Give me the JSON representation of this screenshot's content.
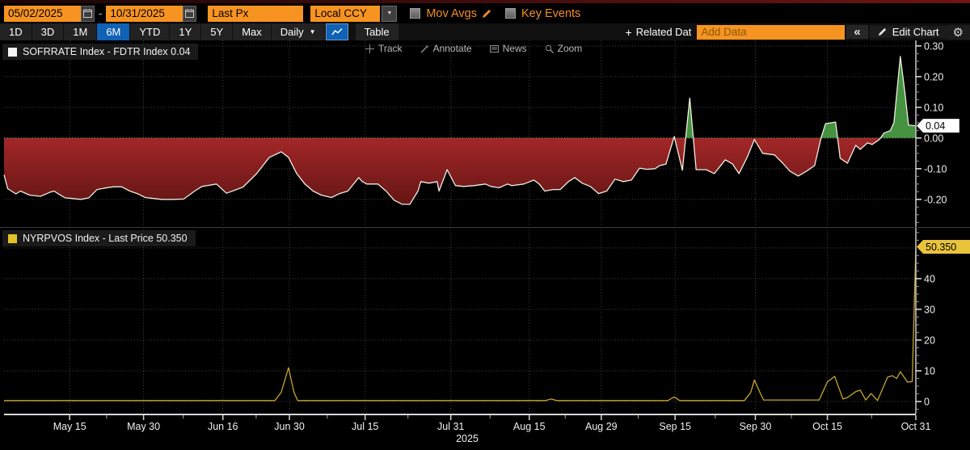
{
  "topbar": {
    "date_from": "05/02/2025",
    "date_to": "10/31/2025",
    "separator": "-",
    "price_field": "Last Px",
    "currency_field": "Local CCY",
    "mov_avgs_label": "Mov Avgs",
    "key_events_label": "Key Events"
  },
  "toolbar": {
    "ranges": [
      "1D",
      "3D",
      "1M",
      "6M",
      "YTD",
      "1Y",
      "5Y",
      "Max"
    ],
    "selected_range": "6M",
    "period_label": "Daily",
    "table_label": "Table",
    "related_data_label": "Related Dat",
    "plus_glyph": "+",
    "add_data_placeholder": "Add Data",
    "collapse_label": "«",
    "edit_chart_label": "Edit Chart"
  },
  "chart_tools": {
    "track": "Track",
    "annotate": "Annotate",
    "news": "News",
    "zoom": "Zoom"
  },
  "colors": {
    "accent_orange": "#f79421",
    "selected_blue": "#1161b5",
    "fill_red_top": "#a32727",
    "fill_red_bottom": "#4f0f0f",
    "fill_green": "#459341",
    "line_white": "#f2ece0",
    "line_yellow": "#c8a52c",
    "tag_white": "#ffffff",
    "tag_yellow": "#e9c43b",
    "grid_grey": "#464646"
  },
  "x_axis": {
    "year_label": "2025",
    "ticks": [
      {
        "label": "May 15",
        "f": 0.072
      },
      {
        "label": "May 30",
        "f": 0.153
      },
      {
        "label": "Jun 16",
        "f": 0.24
      },
      {
        "label": "Jun 30",
        "f": 0.313
      },
      {
        "label": "Jul 15",
        "f": 0.396
      },
      {
        "label": "Jul 31",
        "f": 0.49
      },
      {
        "label": "Aug 15",
        "f": 0.576
      },
      {
        "label": "Aug 29",
        "f": 0.655
      },
      {
        "label": "Sep 15",
        "f": 0.736
      },
      {
        "label": "Sep 30",
        "f": 0.824
      },
      {
        "label": "Oct 15",
        "f": 0.903
      },
      {
        "label": "Oct 31",
        "f": 1.0
      }
    ]
  },
  "chart_data": [
    {
      "type": "line",
      "name": "spread-pane",
      "title": "SOFRRATE Index - FDTR Index",
      "legend_label": "SOFRRATE Index - FDTR Index  0.04",
      "legend_swatch": "#f5f5f5",
      "last_value": 0.04,
      "tag": {
        "label": "0.04",
        "v": 0.04,
        "bg": "#ffffff",
        "fg": "#000000"
      },
      "ylim": [
        -0.29,
        0.318
      ],
      "y_ticks": [
        {
          "v": 0.3,
          "label": "0.30"
        },
        {
          "v": 0.2,
          "label": "0.20"
        },
        {
          "v": 0.1,
          "label": "0.10"
        },
        {
          "v": 0.0,
          "label": "0.00"
        },
        {
          "v": -0.1,
          "label": "-0.10"
        },
        {
          "v": -0.2,
          "label": "-0.20"
        }
      ],
      "grid_values": [
        0.3,
        0.2,
        0.1,
        0.0,
        -0.1,
        -0.2
      ],
      "minor_tick_step": 0.025,
      "line_color": "#f2ece0",
      "fill_baseline": 0,
      "x_unit": "fraction of 2025-05-02 to 2025-10-31",
      "points": [
        [
          0.0,
          -0.12
        ],
        [
          0.004,
          -0.165
        ],
        [
          0.013,
          -0.182
        ],
        [
          0.018,
          -0.173
        ],
        [
          0.028,
          -0.186
        ],
        [
          0.04,
          -0.19
        ],
        [
          0.051,
          -0.176
        ],
        [
          0.055,
          -0.173
        ],
        [
          0.059,
          -0.181
        ],
        [
          0.067,
          -0.195
        ],
        [
          0.075,
          -0.197
        ],
        [
          0.084,
          -0.2
        ],
        [
          0.093,
          -0.195
        ],
        [
          0.102,
          -0.168
        ],
        [
          0.111,
          -0.163
        ],
        [
          0.12,
          -0.159
        ],
        [
          0.129,
          -0.159
        ],
        [
          0.138,
          -0.173
        ],
        [
          0.146,
          -0.181
        ],
        [
          0.155,
          -0.194
        ],
        [
          0.164,
          -0.197
        ],
        [
          0.173,
          -0.2
        ],
        [
          0.185,
          -0.2
        ],
        [
          0.197,
          -0.199
        ],
        [
          0.209,
          -0.173
        ],
        [
          0.217,
          -0.158
        ],
        [
          0.233,
          -0.15
        ],
        [
          0.244,
          -0.18
        ],
        [
          0.262,
          -0.16
        ],
        [
          0.277,
          -0.116
        ],
        [
          0.291,
          -0.063
        ],
        [
          0.304,
          -0.045
        ],
        [
          0.312,
          -0.063
        ],
        [
          0.321,
          -0.116
        ],
        [
          0.33,
          -0.15
        ],
        [
          0.339,
          -0.173
        ],
        [
          0.348,
          -0.186
        ],
        [
          0.359,
          -0.194
        ],
        [
          0.368,
          -0.181
        ],
        [
          0.377,
          -0.173
        ],
        [
          0.389,
          -0.129
        ],
        [
          0.393,
          -0.142
        ],
        [
          0.398,
          -0.15
        ],
        [
          0.41,
          -0.15
        ],
        [
          0.419,
          -0.173
        ],
        [
          0.428,
          -0.203
        ],
        [
          0.437,
          -0.216
        ],
        [
          0.445,
          -0.216
        ],
        [
          0.454,
          -0.173
        ],
        [
          0.457,
          -0.142
        ],
        [
          0.466,
          -0.147
        ],
        [
          0.475,
          -0.142
        ],
        [
          0.477,
          -0.173
        ],
        [
          0.486,
          -0.103
        ],
        [
          0.495,
          -0.155
        ],
        [
          0.504,
          -0.158
        ],
        [
          0.516,
          -0.155
        ],
        [
          0.528,
          -0.15
        ],
        [
          0.534,
          -0.158
        ],
        [
          0.543,
          -0.162
        ],
        [
          0.552,
          -0.15
        ],
        [
          0.557,
          -0.155
        ],
        [
          0.57,
          -0.15
        ],
        [
          0.581,
          -0.137
        ],
        [
          0.587,
          -0.15
        ],
        [
          0.593,
          -0.173
        ],
        [
          0.602,
          -0.168
        ],
        [
          0.61,
          -0.168
        ],
        [
          0.619,
          -0.142
        ],
        [
          0.626,
          -0.129
        ],
        [
          0.634,
          -0.147
        ],
        [
          0.643,
          -0.158
        ],
        [
          0.652,
          -0.181
        ],
        [
          0.661,
          -0.173
        ],
        [
          0.67,
          -0.134
        ],
        [
          0.679,
          -0.142
        ],
        [
          0.688,
          -0.137
        ],
        [
          0.697,
          -0.098
        ],
        [
          0.705,
          -0.102
        ],
        [
          0.714,
          -0.1
        ],
        [
          0.719,
          -0.09
        ],
        [
          0.726,
          -0.085
        ],
        [
          0.735,
          0.005
        ],
        [
          0.744,
          -0.105
        ],
        [
          0.752,
          0.13
        ],
        [
          0.759,
          -0.103
        ],
        [
          0.77,
          -0.103
        ],
        [
          0.779,
          -0.116
        ],
        [
          0.791,
          -0.071
        ],
        [
          0.799,
          -0.085
        ],
        [
          0.806,
          -0.116
        ],
        [
          0.815,
          -0.063
        ],
        [
          0.823,
          -0.005
        ],
        [
          0.832,
          -0.05
        ],
        [
          0.845,
          -0.055
        ],
        [
          0.854,
          -0.082
        ],
        [
          0.862,
          -0.108
        ],
        [
          0.871,
          -0.124
        ],
        [
          0.88,
          -0.108
        ],
        [
          0.889,
          -0.09
        ],
        [
          0.896,
          0.0
        ],
        [
          0.901,
          0.047
        ],
        [
          0.912,
          0.052
        ],
        [
          0.917,
          -0.066
        ],
        [
          0.925,
          -0.082
        ],
        [
          0.934,
          -0.024
        ],
        [
          0.939,
          -0.037
        ],
        [
          0.947,
          -0.016
        ],
        [
          0.952,
          -0.021
        ],
        [
          0.96,
          -0.005
        ],
        [
          0.965,
          0.016
        ],
        [
          0.972,
          0.024
        ],
        [
          0.976,
          0.05
        ],
        [
          0.983,
          0.266
        ],
        [
          0.988,
          0.147
        ],
        [
          0.992,
          0.042
        ],
        [
          1.0,
          0.04
        ]
      ]
    },
    {
      "type": "line",
      "name": "volume-pane",
      "title": "NYRPVOS Index - Last Price",
      "legend_label": "NYRPVOS Index - Last Price  50.350",
      "legend_swatch": "#e3c229",
      "last_value": 50.35,
      "tag": {
        "label": "50.350",
        "v": 50.35,
        "bg": "#e9c43b",
        "fg": "#000000"
      },
      "ylim": [
        -3.95,
        56.8
      ],
      "y_ticks": [
        {
          "v": 40,
          "label": "40"
        },
        {
          "v": 30,
          "label": "30"
        },
        {
          "v": 20,
          "label": "20"
        },
        {
          "v": 10,
          "label": "10"
        },
        {
          "v": 0,
          "label": "0"
        }
      ],
      "grid_values": [
        50,
        40,
        30,
        20,
        10,
        0
      ],
      "minor_tick_step": 2.5,
      "line_color": "#c8a52c",
      "fill_baseline": null,
      "x_unit": "fraction of 2025-05-02 to 2025-10-31",
      "points": [
        [
          0.0,
          0.3
        ],
        [
          0.297,
          0.3
        ],
        [
          0.304,
          3.0
        ],
        [
          0.312,
          11.0
        ],
        [
          0.318,
          3.0
        ],
        [
          0.322,
          0.3
        ],
        [
          0.594,
          0.3
        ],
        [
          0.6,
          0.8
        ],
        [
          0.606,
          0.3
        ],
        [
          0.728,
          0.3
        ],
        [
          0.735,
          1.5
        ],
        [
          0.741,
          0.3
        ],
        [
          0.812,
          0.3
        ],
        [
          0.819,
          3.0
        ],
        [
          0.823,
          7.0
        ],
        [
          0.829,
          3.0
        ],
        [
          0.833,
          0.5
        ],
        [
          0.894,
          0.5
        ],
        [
          0.903,
          6.4
        ],
        [
          0.911,
          8.2
        ],
        [
          0.92,
          0.8
        ],
        [
          0.925,
          1.3
        ],
        [
          0.934,
          3.2
        ],
        [
          0.939,
          3.7
        ],
        [
          0.945,
          0.5
        ],
        [
          0.951,
          2.6
        ],
        [
          0.958,
          0.3
        ],
        [
          0.969,
          7.9
        ],
        [
          0.974,
          8.4
        ],
        [
          0.979,
          7.5
        ],
        [
          0.983,
          9.7
        ],
        [
          0.991,
          6.3
        ],
        [
          0.996,
          6.5
        ],
        [
          1.0,
          50.35
        ]
      ]
    }
  ]
}
